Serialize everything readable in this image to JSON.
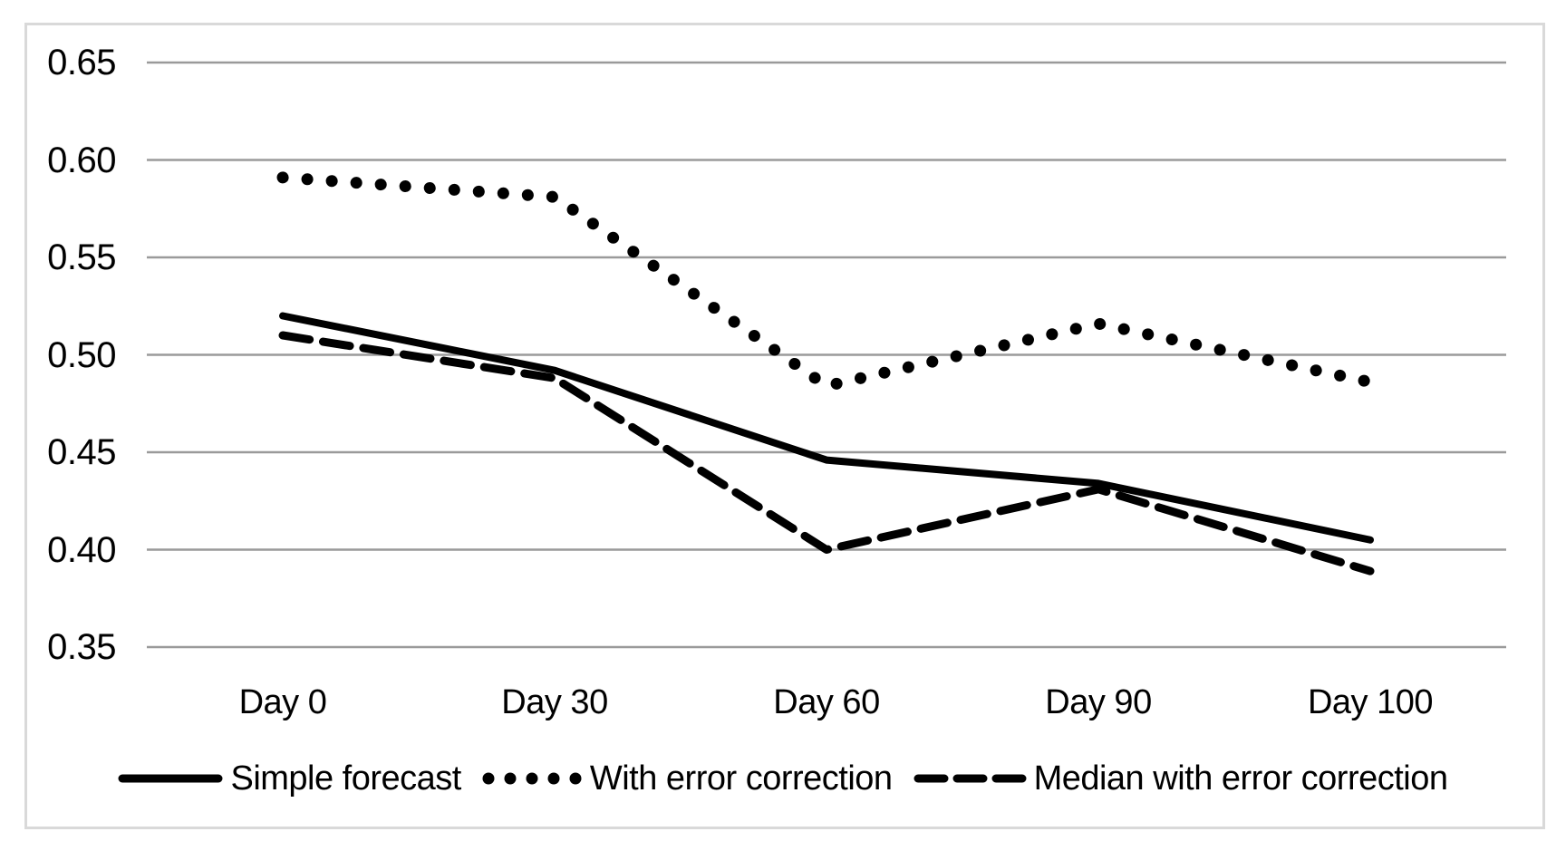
{
  "chart_data": {
    "type": "line",
    "categories": [
      "Day 0",
      "Day 30",
      "Day 60",
      "Day 90",
      "Day 100"
    ],
    "series": [
      {
        "name": "Simple forecast",
        "style": "solid",
        "values": [
          0.52,
          0.492,
          0.446,
          0.434,
          0.405
        ]
      },
      {
        "name": "With error correction",
        "style": "dotted",
        "values": [
          0.591,
          0.581,
          0.484,
          0.516,
          0.486
        ]
      },
      {
        "name": "Median with error correction",
        "style": "dashed",
        "values": [
          0.51,
          0.488,
          0.4,
          0.431,
          0.389
        ]
      }
    ],
    "title": "",
    "xlabel": "",
    "ylabel": "",
    "ylim": [
      0.35,
      0.65
    ],
    "y_ticks": [
      0.65,
      0.6,
      0.55,
      0.5,
      0.45,
      0.4,
      0.35
    ],
    "y_tick_decimals": 2,
    "grid": "horizontal",
    "legend_position": "bottom",
    "colors": {
      "line": "#000000",
      "gridline": "#9a9a9a",
      "figure_border": "#d9d9d9",
      "text": "#000000",
      "background": "#ffffff"
    }
  }
}
